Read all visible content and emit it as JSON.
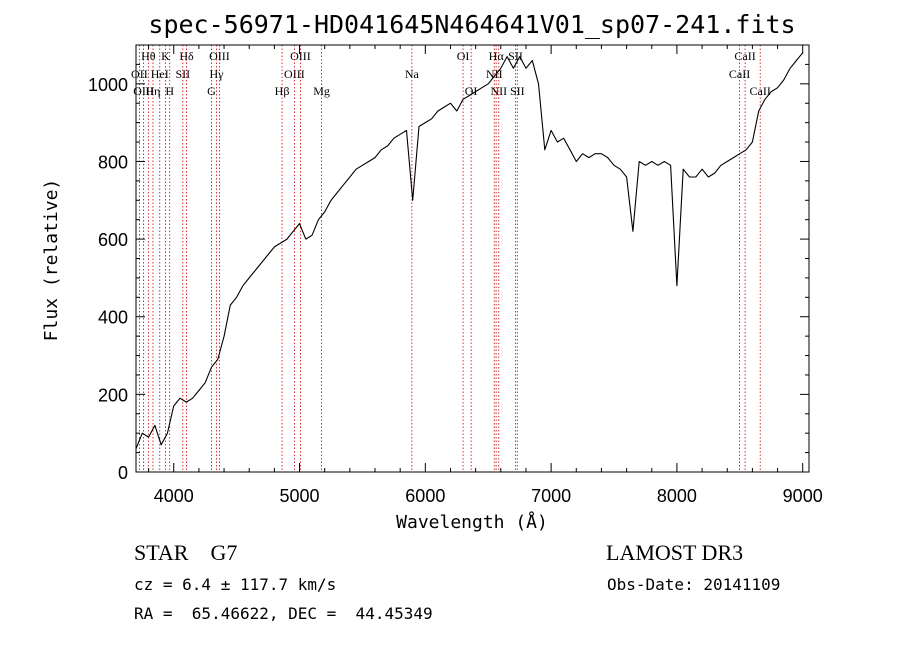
{
  "chart_data": {
    "type": "line",
    "title": "spec-56971-HD041645N464641V01_sp07-241.fits",
    "xlabel": "Wavelength (Å)",
    "ylabel": "Flux (relative)",
    "xlim": [
      3700,
      9050
    ],
    "ylim": [
      0,
      1100
    ],
    "xticks": [
      4000,
      5000,
      6000,
      7000,
      8000,
      9000
    ],
    "yticks": [
      0,
      200,
      400,
      600,
      800,
      1000
    ],
    "grid": false,
    "series": [
      {
        "x": [
          3700,
          3750,
          3800,
          3850,
          3900,
          3950,
          4000,
          4050,
          4100,
          4150,
          4200,
          4250,
          4300,
          4350,
          4400,
          4450,
          4500,
          4550,
          4600,
          4650,
          4700,
          4750,
          4800,
          4850,
          4900,
          4950,
          5000,
          5050,
          5100,
          5150,
          5200,
          5250,
          5300,
          5350,
          5400,
          5450,
          5500,
          5550,
          5600,
          5650,
          5700,
          5750,
          5800,
          5850,
          5900,
          5950,
          6000,
          6050,
          6100,
          6150,
          6200,
          6250,
          6300,
          6350,
          6400,
          6450,
          6500,
          6550,
          6600,
          6650,
          6700,
          6750,
          6800,
          6850,
          6900,
          6950,
          7000,
          7050,
          7100,
          7150,
          7200,
          7250,
          7300,
          7350,
          7400,
          7450,
          7500,
          7550,
          7600,
          7650,
          7700,
          7750,
          7800,
          7850,
          7900,
          7950,
          8000,
          8050,
          8100,
          8150,
          8200,
          8250,
          8300,
          8350,
          8400,
          8450,
          8500,
          8550,
          8600,
          8650,
          8700,
          8750,
          8800,
          8850,
          8900,
          8950,
          9000
        ],
        "y": [
          60,
          100,
          90,
          120,
          70,
          100,
          170,
          190,
          180,
          190,
          210,
          230,
          270,
          290,
          350,
          430,
          450,
          480,
          500,
          520,
          540,
          560,
          580,
          590,
          600,
          620,
          640,
          600,
          610,
          650,
          670,
          700,
          720,
          740,
          760,
          780,
          790,
          800,
          810,
          830,
          840,
          860,
          870,
          880,
          700,
          890,
          900,
          910,
          930,
          940,
          950,
          930,
          960,
          970,
          980,
          990,
          1000,
          1020,
          1040,
          1070,
          1040,
          1070,
          1040,
          1060,
          1000,
          830,
          880,
          850,
          860,
          830,
          800,
          820,
          810,
          820,
          820,
          810,
          790,
          780,
          760,
          620,
          800,
          790,
          800,
          790,
          800,
          790,
          480,
          780,
          760,
          760,
          780,
          760,
          770,
          790,
          800,
          810,
          820,
          830,
          850,
          930,
          960,
          980,
          990,
          1010,
          1040,
          1060,
          1080
        ]
      }
    ],
    "line_labels": [
      {
        "text": "Hθ",
        "x": 3798,
        "row": 1
      },
      {
        "text": "K",
        "x": 3934,
        "row": 1
      },
      {
        "text": "Hδ",
        "x": 4102,
        "row": 1
      },
      {
        "text": "OIII",
        "x": 4363,
        "row": 1
      },
      {
        "text": "OIII",
        "x": 5007,
        "row": 1
      },
      {
        "text": "OI",
        "x": 6300,
        "row": 1
      },
      {
        "text": "Hα",
        "x": 6563,
        "row": 1
      },
      {
        "text": "SII",
        "x": 6717,
        "row": 1
      },
      {
        "text": "CaII",
        "x": 8542,
        "row": 1
      },
      {
        "text": "OII",
        "x": 3727,
        "row": 2
      },
      {
        "text": "HeI",
        "x": 3889,
        "row": 2
      },
      {
        "text": "SII",
        "x": 4072,
        "row": 2
      },
      {
        "text": "Hγ",
        "x": 4340,
        "row": 2
      },
      {
        "text": "OIII",
        "x": 4959,
        "row": 2
      },
      {
        "text": "Na",
        "x": 5893,
        "row": 2
      },
      {
        "text": "NII",
        "x": 6548,
        "row": 2
      },
      {
        "text": "CaII",
        "x": 8498,
        "row": 2
      },
      {
        "text": "OIII",
        "x": 3760,
        "row": 3
      },
      {
        "text": "Hη",
        "x": 3835,
        "row": 3
      },
      {
        "text": "H",
        "x": 3968,
        "row": 3
      },
      {
        "text": "G",
        "x": 4300,
        "row": 3
      },
      {
        "text": "Hβ",
        "x": 4861,
        "row": 3
      },
      {
        "text": "Mg",
        "x": 5175,
        "row": 3
      },
      {
        "text": "OI",
        "x": 6364,
        "row": 3
      },
      {
        "text": "NII",
        "x": 6584,
        "row": 3
      },
      {
        "text": "SII",
        "x": 6731,
        "row": 3
      },
      {
        "text": "CaII",
        "x": 8662,
        "row": 3
      }
    ],
    "line_marks": [
      3727,
      3760,
      3798,
      3835,
      3889,
      3934,
      3968,
      4072,
      4102,
      4300,
      4340,
      4363,
      4861,
      4959,
      5007,
      5175,
      5893,
      6300,
      6364,
      6548,
      6563,
      6584,
      6717,
      6731,
      8498,
      8542,
      8662
    ],
    "mark_color": "#cc0000"
  },
  "footer": {
    "object": "STAR    G7",
    "survey": "LAMOST DR3",
    "cz": "cz = 6.4 ± 117.7 km/s",
    "obs_date": "Obs-Date: 20141109",
    "coords": "RA =  65.46622, DEC =  44.45349"
  }
}
